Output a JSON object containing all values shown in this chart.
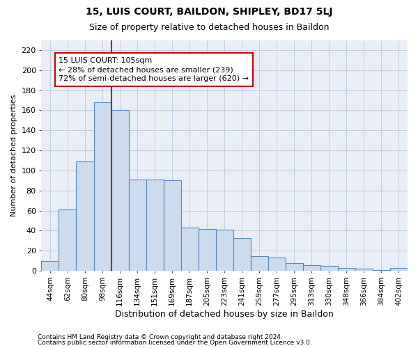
{
  "title1": "15, LUIS COURT, BAILDON, SHIPLEY, BD17 5LJ",
  "title2": "Size of property relative to detached houses in Baildon",
  "xlabel": "Distribution of detached houses by size in Baildon",
  "ylabel": "Number of detached properties",
  "categories": [
    "44sqm",
    "62sqm",
    "80sqm",
    "98sqm",
    "116sqm",
    "134sqm",
    "151sqm",
    "169sqm",
    "187sqm",
    "205sqm",
    "223sqm",
    "241sqm",
    "259sqm",
    "277sqm",
    "295sqm",
    "313sqm",
    "330sqm",
    "348sqm",
    "366sqm",
    "384sqm",
    "402sqm"
  ],
  "values": [
    10,
    61,
    109,
    168,
    160,
    91,
    91,
    90,
    43,
    42,
    41,
    33,
    15,
    13,
    8,
    6,
    5,
    3,
    2,
    1,
    3
  ],
  "bar_color": "#ccdcee",
  "bar_edge_color": "#5588bb",
  "vline_x": 3.5,
  "vline_color": "#cc0000",
  "annotation_text": "15 LUIS COURT: 105sqm\n← 28% of detached houses are smaller (239)\n72% of semi-detached houses are larger (620) →",
  "annotation_box_color": "#ffffff",
  "annotation_box_edge": "#cc0000",
  "ylim": [
    0,
    230
  ],
  "yticks": [
    0,
    20,
    40,
    60,
    80,
    100,
    120,
    140,
    160,
    180,
    200,
    220
  ],
  "footer1": "Contains HM Land Registry data © Crown copyright and database right 2024.",
  "footer2": "Contains public sector information licensed under the Open Government Licence v3.0.",
  "bg_color": "#ffffff",
  "ax_facecolor": "#e8edf6",
  "grid_color": "#c0cce0",
  "title1_fontsize": 10,
  "title2_fontsize": 9,
  "xlabel_fontsize": 9,
  "ylabel_fontsize": 8,
  "annot_fontsize": 8,
  "footer_fontsize": 6.5
}
